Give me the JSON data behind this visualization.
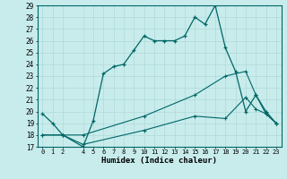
{
  "xlabel": "Humidex (Indice chaleur)",
  "bg_color": "#c8ecec",
  "grid_color": "#b0d8d8",
  "line_color": "#006666",
  "ylim": [
    17,
    29
  ],
  "yticks": [
    17,
    18,
    19,
    20,
    21,
    22,
    23,
    24,
    25,
    26,
    27,
    28,
    29
  ],
  "x_ticks": [
    0,
    1,
    2,
    4,
    5,
    6,
    7,
    8,
    9,
    10,
    11,
    12,
    13,
    14,
    15,
    16,
    17,
    18,
    19,
    20,
    21,
    22,
    23
  ],
  "series1_x": [
    0,
    1,
    2,
    4,
    5,
    6,
    7,
    8,
    9,
    10,
    11,
    12,
    13,
    14,
    15,
    16,
    17,
    18,
    19,
    20,
    21,
    22,
    23
  ],
  "series1_y": [
    19.8,
    19.0,
    18.0,
    17.0,
    19.2,
    23.2,
    23.8,
    24.0,
    25.2,
    26.4,
    26.0,
    26.0,
    26.0,
    26.4,
    28.0,
    27.4,
    29.0,
    25.4,
    23.4,
    20.0,
    21.4,
    19.8,
    19.0
  ],
  "series2_x": [
    0,
    2,
    4,
    10,
    15,
    18,
    20,
    21,
    22,
    23
  ],
  "series2_y": [
    18.0,
    18.0,
    18.0,
    19.6,
    21.4,
    23.0,
    23.4,
    21.4,
    20.0,
    19.0
  ],
  "series3_x": [
    0,
    2,
    4,
    10,
    15,
    18,
    20,
    21,
    22,
    23
  ],
  "series3_y": [
    18.0,
    18.0,
    17.2,
    18.4,
    19.6,
    19.4,
    21.2,
    20.2,
    19.8,
    19.0
  ]
}
